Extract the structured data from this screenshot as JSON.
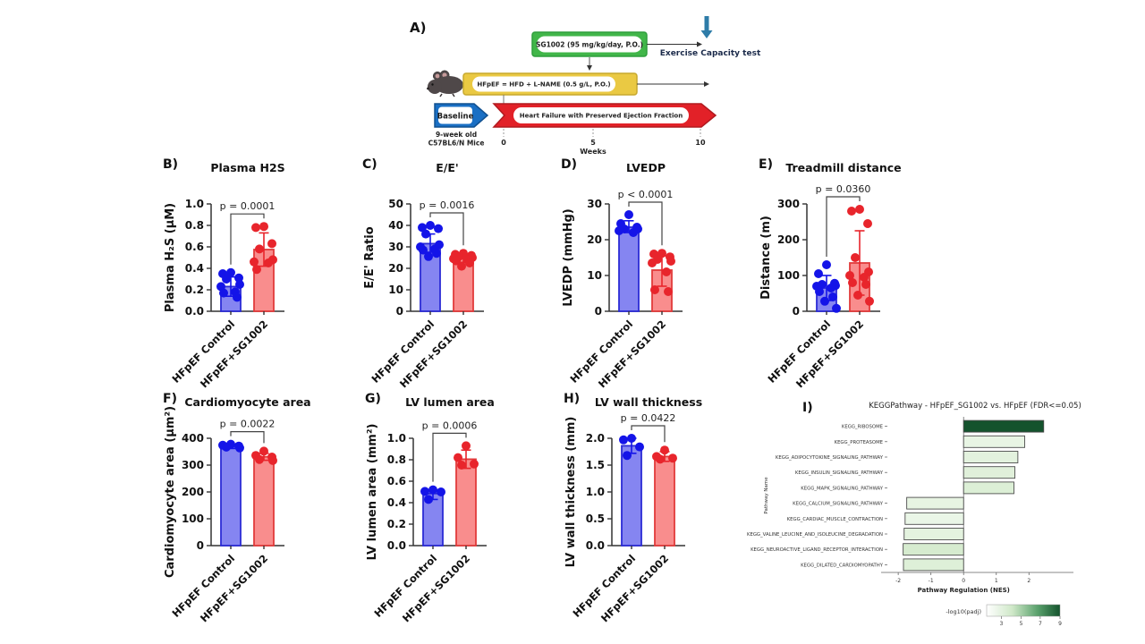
{
  "panel_a": {
    "label": "A)",
    "sg1002_box": "SG1002 (95 mg/kg/day, P.O.)",
    "hfpef_box": "HFpEF = HFD + L-NAME (0.5 g/L, P.O.)",
    "baseline_label": "Baseline",
    "hf_banner": "Heart Failure with Preserved Ejection Fraction",
    "mice_age_line1": "9-week old",
    "mice_age_line2": "C57BL6/N Mice",
    "exercise_label": "Exercise Capacity test",
    "timeline": {
      "ticks": [
        "0",
        "5",
        "10"
      ],
      "axis_label": "Weeks"
    },
    "colors": {
      "sg1002_green": "#41b649",
      "sg1002_green_border": "#2f9e3c",
      "hfpef_yellow": "#eac943",
      "hfpef_yellow_border": "#c7a92e",
      "baseline_blue": "#1a6fc4",
      "baseline_blue_border": "#11508f",
      "hf_red": "#e22128",
      "hf_red_border": "#b11a1f",
      "exercise_arrow_blue": "#2e7ca8"
    }
  },
  "style": {
    "groups": [
      "HFpEF Control",
      "HFpEF+SG1002"
    ],
    "bar_fill": [
      "#8585f1",
      "#f98d8d"
    ],
    "bar_border": [
      "#2b2bd5",
      "#e23b3b"
    ],
    "point_color": [
      "#1414e8",
      "#e8252c"
    ]
  },
  "chart_data": [
    {
      "panel": "B)",
      "type": "bar",
      "title": "Plasma H2S",
      "ylabel": "Plasma H₂S (µM)",
      "p_label": "p = 0.0001",
      "ylim": [
        0,
        1.0
      ],
      "yticks": [
        "0.0",
        "0.2",
        "0.4",
        "0.6",
        "0.8",
        "1.0"
      ],
      "categories": [
        "HFpEF Control",
        "HFpEF+SG1002"
      ],
      "series": [
        {
          "name": "HFpEF Control",
          "mean": 0.23,
          "err": [
            0.14,
            0.32
          ],
          "points": [
            0.36,
            0.35,
            0.31,
            0.3,
            0.25,
            0.23,
            0.18,
            0.17,
            0.13
          ]
        },
        {
          "name": "HFpEF+SG1002",
          "mean": 0.575,
          "err": [
            0.42,
            0.73
          ],
          "points": [
            0.79,
            0.78,
            0.63,
            0.58,
            0.48,
            0.46,
            0.45,
            0.39
          ]
        }
      ]
    },
    {
      "panel": "C)",
      "type": "bar",
      "title": "E/E'",
      "ylabel": "E/E' Ratio",
      "p_label": "p = 0.0016",
      "ylim": [
        0,
        50
      ],
      "yticks": [
        "0",
        "10",
        "20",
        "30",
        "40",
        "50"
      ],
      "categories": [
        "HFpEF Control",
        "HFpEF+SG1002"
      ],
      "series": [
        {
          "name": "HFpEF Control",
          "mean": 31.5,
          "err": [
            27.5,
            36
          ],
          "points": [
            40,
            39,
            38.5,
            36,
            31,
            30,
            29,
            28.5,
            27,
            25.5
          ]
        },
        {
          "name": "HFpEF+SG1002",
          "mean": 24.5,
          "err": [
            22.8,
            26.2
          ],
          "points": [
            27,
            26.5,
            26,
            25.5,
            25,
            24.5,
            24,
            23.5,
            22.5,
            21
          ]
        }
      ]
    },
    {
      "panel": "D)",
      "type": "bar",
      "title": "LVEDP",
      "ylabel": "LVEDP (mmHg)",
      "p_label": "p < 0.0001",
      "ylim": [
        0,
        30
      ],
      "yticks": [
        "0",
        "10",
        "20",
        "30"
      ],
      "categories": [
        "HFpEF Control",
        "HFpEF+SG1002"
      ],
      "series": [
        {
          "name": "HFpEF Control",
          "mean": 23.5,
          "err": [
            22,
            25.3
          ],
          "points": [
            27,
            24.5,
            23.5,
            23,
            23,
            22.5,
            22
          ]
        },
        {
          "name": "HFpEF+SG1002",
          "mean": 11.5,
          "err": [
            7,
            15.5
          ],
          "points": [
            16.2,
            16,
            15.2,
            14.5,
            14,
            13.5,
            11,
            6,
            5.5
          ]
        }
      ]
    },
    {
      "panel": "E)",
      "type": "bar",
      "title": "Treadmill distance",
      "ylabel": "Distance (m)",
      "p_label": "p = 0.0360",
      "ylim": [
        0,
        300
      ],
      "yticks": [
        "0",
        "100",
        "200",
        "300"
      ],
      "categories": [
        "HFpEF Control",
        "HFpEF+SG1002"
      ],
      "series": [
        {
          "name": "HFpEF Control",
          "mean": 65,
          "err": [
            30,
            100
          ],
          "points": [
            130,
            105,
            78,
            75,
            72,
            70,
            65,
            55,
            40,
            28,
            8
          ]
        },
        {
          "name": "HFpEF+SG1002",
          "mean": 135,
          "err": [
            45,
            225
          ],
          "points": [
            285,
            280,
            245,
            150,
            110,
            100,
            95,
            80,
            75,
            45,
            28
          ]
        }
      ]
    },
    {
      "panel": "F)",
      "type": "bar",
      "title": "Cardiomyocyte area",
      "ylabel": "Cardiomyocyte area (µm²)",
      "p_label": "p = 0.0022",
      "ylim": [
        0,
        400
      ],
      "yticks": [
        "0",
        "100",
        "200",
        "300",
        "400"
      ],
      "categories": [
        "HFpEF Control",
        "HFpEF+SG1002"
      ],
      "series": [
        {
          "name": "HFpEF Control",
          "mean": 370,
          "err": [
            362,
            378
          ],
          "points": [
            378,
            374,
            371,
            367,
            364
          ]
        },
        {
          "name": "HFpEF+SG1002",
          "mean": 331,
          "err": [
            318,
            344
          ],
          "points": [
            352,
            336,
            330,
            321,
            317
          ]
        }
      ]
    },
    {
      "panel": "G)",
      "type": "bar",
      "title": "LV lumen area",
      "ylabel": "LV lumen area (mm²)",
      "p_label": "p = 0.0006",
      "ylim": [
        0,
        1.0
      ],
      "yticks": [
        "0.0",
        "0.2",
        "0.4",
        "0.6",
        "0.8",
        "1.0"
      ],
      "categories": [
        "HFpEF Control",
        "HFpEF+SG1002"
      ],
      "series": [
        {
          "name": "HFpEF Control",
          "mean": 0.485,
          "err": [
            0.43,
            0.52
          ],
          "points": [
            0.52,
            0.505,
            0.5,
            0.43
          ]
        },
        {
          "name": "HFpEF+SG1002",
          "mean": 0.805,
          "err": [
            0.72,
            0.89
          ],
          "points": [
            0.93,
            0.82,
            0.76,
            0.75
          ]
        }
      ]
    },
    {
      "panel": "H)",
      "type": "bar",
      "title": "LV wall thickness",
      "ylabel": "LV wall thickness (mm)",
      "p_label": "p = 0.0422",
      "ylim": [
        0,
        2.0
      ],
      "yticks": [
        "0.0",
        "0.5",
        "1.0",
        "1.5",
        "2.0"
      ],
      "categories": [
        "HFpEF Control",
        "HFpEF+SG1002"
      ],
      "series": [
        {
          "name": "HFpEF Control",
          "mean": 1.86,
          "err": [
            1.72,
            2.0
          ],
          "points": [
            2.0,
            1.97,
            1.84,
            1.68
          ]
        },
        {
          "name": "HFpEF+SG1002",
          "mean": 1.66,
          "err": [
            1.57,
            1.75
          ],
          "points": [
            1.78,
            1.66,
            1.63,
            1.61
          ]
        }
      ]
    },
    {
      "panel": "I)",
      "type": "hbar",
      "title": "KEGGPathway - HFpEF_SG1002 vs. HFpEF (FDR<=0.05)",
      "xlabel": "Pathway Regulation (NES)",
      "ylabel": "Pathway Name",
      "xlim": [
        -2.25,
        2.95
      ],
      "xticks": [
        "-2",
        "-1",
        "0",
        "1",
        "2"
      ],
      "bars": [
        {
          "name": "KEGG_RIBOSOME",
          "nes": 2.45,
          "fill": "#14532d"
        },
        {
          "name": "KEGG_PROTEASOME",
          "nes": 1.87,
          "fill": "#e8f5e4"
        },
        {
          "name": "KEGG_ADIPOCYTOKINE_SIGNALING_PATHWAY",
          "nes": 1.66,
          "fill": "#e3f2de"
        },
        {
          "name": "KEGG_INSULIN_SIGNALING_PATHWAY",
          "nes": 1.57,
          "fill": "#e0f0da"
        },
        {
          "name": "KEGG_MAPK_SIGNALING_PATHWAY",
          "nes": 1.54,
          "fill": "#dcefd6"
        },
        {
          "name": "KEGG_CALCIUM_SIGNALING_PATHWAY",
          "nes": -1.74,
          "fill": "#e7f4e2"
        },
        {
          "name": "KEGG_CARDIAC_MUSCLE_CONTRACTION",
          "nes": -1.79,
          "fill": "#eaf6e7"
        },
        {
          "name": "KEGG_VALINE_LEUCINE_AND_ISOLEUCINE_DEGRADATION",
          "nes": -1.82,
          "fill": "#e4f3df"
        },
        {
          "name": "KEGG_NEUROACTIVE_LIGAND_RECEPTOR_INTERACTION",
          "nes": -1.85,
          "fill": "#d6ebcf"
        },
        {
          "name": "KEGG_DILATED_CARDIOMYOPATHY",
          "nes": -1.84,
          "fill": "#def0d8"
        }
      ],
      "legend": {
        "label": "-log10(padj)",
        "ticks": [
          "3",
          "5",
          "7",
          "9"
        ],
        "gradient_from": "#ffffff",
        "gradient_to": "#14532d"
      }
    }
  ]
}
